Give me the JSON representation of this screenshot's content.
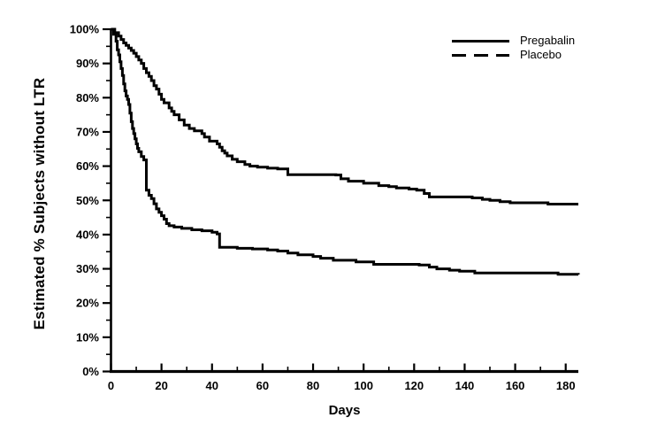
{
  "figure": {
    "background": "#ffffff",
    "line_color": "#000000"
  },
  "chart_data": {
    "type": "line",
    "subtype": "kaplan-meier-step",
    "title": "",
    "xlabel": "Days",
    "ylabel": "Estimated % Subjects without LTR",
    "xlim": [
      0,
      185
    ],
    "ylim": [
      0,
      100
    ],
    "grid": false,
    "x_major_ticks": [
      0,
      20,
      40,
      60,
      80,
      100,
      120,
      140,
      160,
      180
    ],
    "x_tick_labels": [
      "0",
      "20",
      "40",
      "60",
      "80",
      "100",
      "120",
      "140",
      "160",
      "180"
    ],
    "x_minor_tick_step": 10,
    "y_major_ticks": [
      0,
      10,
      20,
      30,
      40,
      50,
      60,
      70,
      80,
      90,
      100
    ],
    "y_tick_labels": [
      "0%",
      "10%",
      "20%",
      "30%",
      "40%",
      "50%",
      "60%",
      "70%",
      "80%",
      "90%",
      "100%"
    ],
    "y_minor_tick_step": 5,
    "legend": {
      "position": "top-right",
      "entries": [
        {
          "label": "Pregabalin",
          "line_style": "solid"
        },
        {
          "label": "Placebo",
          "line_style": "dashed"
        }
      ]
    },
    "series": [
      {
        "name": "Pregabalin",
        "legend_line_style": "solid",
        "plot_line_style": "solid",
        "color": "#000000",
        "points": [
          [
            0,
            100
          ],
          [
            1.5,
            99
          ],
          [
            3,
            98
          ],
          [
            4,
            97
          ],
          [
            5,
            96
          ],
          [
            6,
            95.3
          ],
          [
            7,
            94.5
          ],
          [
            8,
            93.8
          ],
          [
            9,
            93
          ],
          [
            10,
            92
          ],
          [
            11,
            91
          ],
          [
            12,
            90
          ],
          [
            13,
            88.5
          ],
          [
            14,
            87.3
          ],
          [
            15,
            86.2
          ],
          [
            16,
            85
          ],
          [
            17,
            83.5
          ],
          [
            18,
            82.5
          ],
          [
            19,
            81
          ],
          [
            20,
            79.5
          ],
          [
            21,
            78.5
          ],
          [
            23,
            77
          ],
          [
            24,
            76
          ],
          [
            25,
            75
          ],
          [
            27,
            73.5
          ],
          [
            29,
            72
          ],
          [
            31,
            71
          ],
          [
            33,
            70.3
          ],
          [
            36,
            69.5
          ],
          [
            37,
            68.5
          ],
          [
            39,
            67.3
          ],
          [
            42,
            66.5
          ],
          [
            43,
            65.5
          ],
          [
            44,
            64.5
          ],
          [
            45,
            63.8
          ],
          [
            46,
            63
          ],
          [
            48,
            62
          ],
          [
            50,
            61.3
          ],
          [
            53,
            60.5
          ],
          [
            55,
            60
          ],
          [
            58,
            59.7
          ],
          [
            62,
            59.4
          ],
          [
            66,
            59.2
          ],
          [
            70,
            57.5
          ],
          [
            89,
            57.4
          ],
          [
            91,
            56.3
          ],
          [
            94,
            55.6
          ],
          [
            100,
            55
          ],
          [
            106,
            54.3
          ],
          [
            110,
            54
          ],
          [
            113,
            53.6
          ],
          [
            118,
            53.3
          ],
          [
            121,
            53
          ],
          [
            124,
            52
          ],
          [
            126,
            51
          ],
          [
            143,
            50.7
          ],
          [
            147,
            50.3
          ],
          [
            150,
            50
          ],
          [
            154,
            49.6
          ],
          [
            158,
            49.3
          ],
          [
            173,
            48.9
          ],
          [
            185,
            48.9
          ]
        ]
      },
      {
        "name": "Placebo",
        "legend_line_style": "dashed",
        "plot_line_style": "solid",
        "color": "#000000",
        "points": [
          [
            0,
            100
          ],
          [
            1,
            98.5
          ],
          [
            2,
            96.5
          ],
          [
            2.5,
            94
          ],
          [
            3,
            92.5
          ],
          [
            3.5,
            90.5
          ],
          [
            4,
            88.5
          ],
          [
            4.5,
            86.5
          ],
          [
            5,
            84
          ],
          [
            5.5,
            82
          ],
          [
            6,
            80.5
          ],
          [
            6.5,
            79.5
          ],
          [
            7,
            78
          ],
          [
            7.5,
            75.5
          ],
          [
            8,
            73
          ],
          [
            8.5,
            71
          ],
          [
            9,
            69.5
          ],
          [
            9.5,
            68
          ],
          [
            10,
            66.5
          ],
          [
            10.5,
            65.2
          ],
          [
            11,
            64.2
          ],
          [
            12,
            62.8
          ],
          [
            13,
            61.8
          ],
          [
            14,
            53
          ],
          [
            15,
            51.5
          ],
          [
            16,
            50.5
          ],
          [
            17,
            49
          ],
          [
            18,
            47.5
          ],
          [
            19,
            46.5
          ],
          [
            20,
            45.5
          ],
          [
            21,
            44.5
          ],
          [
            22,
            43.2
          ],
          [
            23,
            42.6
          ],
          [
            25,
            42.2
          ],
          [
            28,
            41.8
          ],
          [
            32,
            41.4
          ],
          [
            36,
            41.1
          ],
          [
            40,
            40.7
          ],
          [
            42,
            40.2
          ],
          [
            43,
            36.3
          ],
          [
            50,
            36
          ],
          [
            56,
            35.8
          ],
          [
            62,
            35.5
          ],
          [
            66,
            35.2
          ],
          [
            70,
            34.6
          ],
          [
            74,
            34.1
          ],
          [
            80,
            33.6
          ],
          [
            83,
            33.1
          ],
          [
            88,
            32.5
          ],
          [
            97,
            32
          ],
          [
            104,
            31.3
          ],
          [
            122,
            31.1
          ],
          [
            126,
            30.5
          ],
          [
            129,
            30
          ],
          [
            134,
            29.6
          ],
          [
            138,
            29.3
          ],
          [
            144,
            28.8
          ],
          [
            177,
            28.4
          ],
          [
            185,
            28.3
          ]
        ]
      }
    ]
  }
}
